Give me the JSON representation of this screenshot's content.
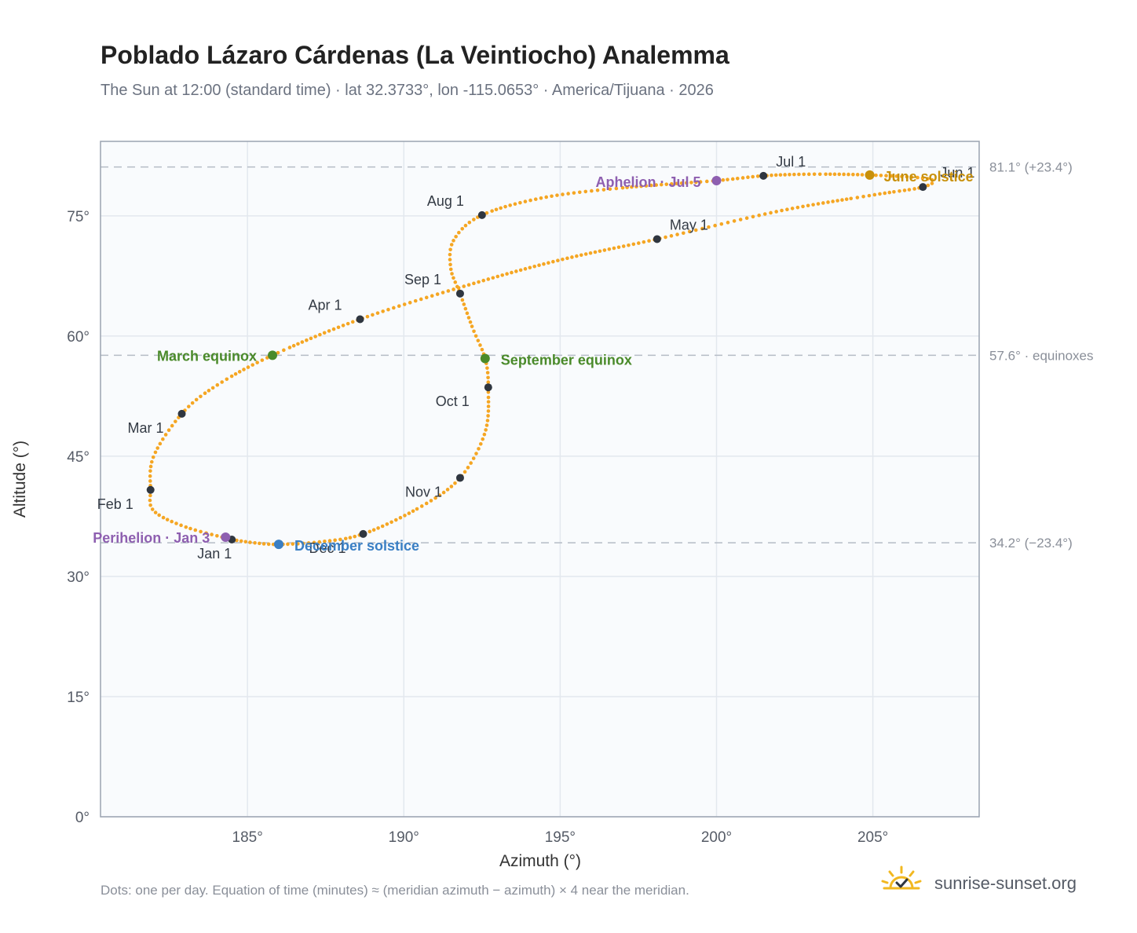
{
  "title": "Poblado Lázaro Cárdenas (La Veintiocho) Analemma",
  "subtitle": "The Sun at 12:00 (standard time) · lat 32.3733°, lon -115.0653° · America/Tijuana · 2026",
  "footnote": "Dots: one per day. Equation of time (minutes) ≈ (meridian azimuth − azimuth) × 4 near the meridian.",
  "brand": {
    "text": "sunrise-sunset.org",
    "icon": "sun-check-icon"
  },
  "chart_data": {
    "type": "scatter",
    "xlabel": "Azimuth (°)",
    "ylabel": "Altitude (°)",
    "xlim": [
      180.3,
      208.4
    ],
    "ylim": [
      0,
      84.3
    ],
    "x_ticks": [
      185,
      190,
      195,
      200,
      205
    ],
    "x_tick_labels": [
      "185°",
      "190°",
      "195°",
      "200°",
      "205°"
    ],
    "y_ticks": [
      0,
      15,
      30,
      45,
      60,
      75
    ],
    "y_tick_labels": [
      "0°",
      "15°",
      "30°",
      "45°",
      "60°",
      "75°"
    ],
    "grid": true,
    "colors": {
      "path": "#f5a623",
      "month": "#2f3640",
      "equinox": "#4a8a2a",
      "june": "#c8900a",
      "december": "#3a7fc4",
      "apsis": "#8e5fb0",
      "ref_line": "#b5bcc6"
    },
    "reference_lines": [
      {
        "y": 81.1,
        "label": "81.1° (+23.4°)"
      },
      {
        "y": 57.6,
        "label": "57.6° · equinoxes"
      },
      {
        "y": 34.2,
        "label": "34.2° (−23.4°)"
      }
    ],
    "month_points": [
      {
        "label": "Jan 1",
        "x": 184.5,
        "y": 34.6
      },
      {
        "label": "Feb 1",
        "x": 181.9,
        "y": 40.8
      },
      {
        "label": "Mar 1",
        "x": 182.9,
        "y": 50.3
      },
      {
        "label": "Apr 1",
        "x": 188.6,
        "y": 62.1
      },
      {
        "label": "May 1",
        "x": 198.1,
        "y": 72.1
      },
      {
        "label": "Jun 1",
        "x": 206.6,
        "y": 78.6
      },
      {
        "label": "Jul 1",
        "x": 201.5,
        "y": 80.0
      },
      {
        "label": "Aug 1",
        "x": 192.5,
        "y": 75.1
      },
      {
        "label": "Sep 1",
        "x": 191.8,
        "y": 65.3
      },
      {
        "label": "Oct 1",
        "x": 192.7,
        "y": 53.6
      },
      {
        "label": "Nov 1",
        "x": 191.8,
        "y": 42.3
      },
      {
        "label": "Dec 1",
        "x": 188.7,
        "y": 35.3
      }
    ],
    "events": [
      {
        "label": "March equinox",
        "x": 185.8,
        "y": 57.6,
        "kind": "equinox"
      },
      {
        "label": "June solstice",
        "x": 204.9,
        "y": 80.1,
        "kind": "june"
      },
      {
        "label": "September equinox",
        "x": 192.6,
        "y": 57.2,
        "kind": "equinox"
      },
      {
        "label": "December solstice",
        "x": 186.0,
        "y": 34.0,
        "kind": "december"
      },
      {
        "label": "Perihelion · Jan 3",
        "x": 184.3,
        "y": 34.9,
        "kind": "apsis"
      },
      {
        "label": "Aphelion · Jul 5",
        "x": 200.0,
        "y": 79.4,
        "kind": "apsis"
      }
    ],
    "path_knots": [
      [
        184.5,
        34.6
      ],
      [
        183.0,
        36.2
      ],
      [
        182.0,
        38.2
      ],
      [
        181.9,
        40.8
      ],
      [
        182.0,
        45.0
      ],
      [
        182.9,
        50.3
      ],
      [
        184.0,
        53.8
      ],
      [
        185.8,
        57.6
      ],
      [
        188.6,
        62.1
      ],
      [
        192.0,
        66.3
      ],
      [
        195.0,
        69.5
      ],
      [
        198.1,
        72.1
      ],
      [
        202.0,
        75.6
      ],
      [
        205.0,
        77.6
      ],
      [
        206.6,
        78.6
      ],
      [
        206.8,
        79.6
      ],
      [
        204.9,
        80.1
      ],
      [
        203.0,
        80.2
      ],
      [
        201.5,
        80.0
      ],
      [
        200.0,
        79.4
      ],
      [
        197.0,
        78.5
      ],
      [
        194.5,
        77.3
      ],
      [
        192.5,
        75.1
      ],
      [
        191.6,
        72.0
      ],
      [
        191.5,
        68.5
      ],
      [
        191.8,
        65.3
      ],
      [
        192.2,
        61.0
      ],
      [
        192.6,
        57.2
      ],
      [
        192.7,
        53.6
      ],
      [
        192.6,
        48.0
      ],
      [
        191.8,
        42.3
      ],
      [
        190.5,
        38.6
      ],
      [
        188.7,
        35.3
      ],
      [
        187.3,
        34.3
      ],
      [
        186.0,
        34.0
      ],
      [
        185.2,
        34.2
      ],
      [
        184.5,
        34.6
      ]
    ]
  }
}
